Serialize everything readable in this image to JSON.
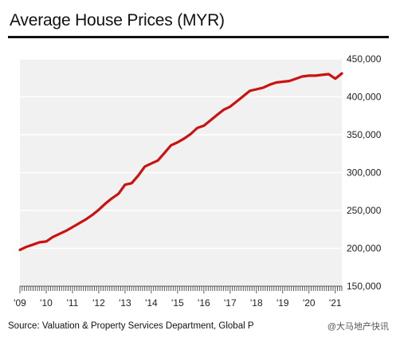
{
  "chart_data": {
    "type": "line",
    "title": "Average House Prices (MYR)",
    "xlabel": "",
    "ylabel": "",
    "x_tick_labels": [
      "'09",
      "'10",
      "'11",
      "'12",
      "'13",
      "'14",
      "'15",
      "'16",
      "'17",
      "'18",
      "'19",
      "'20",
      "'21"
    ],
    "y_tick_labels": [
      "150,000",
      "200,000",
      "250,000",
      "300,000",
      "350,000",
      "400,000",
      "450,000"
    ],
    "ylim": [
      150000,
      450000
    ],
    "xlim": [
      2009.0,
      2021.25
    ],
    "grid": "horizontal",
    "line_color": "#cc1111",
    "series": [
      {
        "x": [
          2009.0,
          2009.25,
          2009.5,
          2009.75,
          2010.0,
          2010.25,
          2010.5,
          2010.75,
          2011.0,
          2011.25,
          2011.5,
          2011.75,
          2012.0,
          2012.25,
          2012.5,
          2012.75,
          2013.0,
          2013.25,
          2013.5,
          2013.75,
          2014.0,
          2014.25,
          2014.5,
          2014.75,
          2015.0,
          2015.25,
          2015.5,
          2015.75,
          2016.0,
          2016.25,
          2016.5,
          2016.75,
          2017.0,
          2017.25,
          2017.5,
          2017.75,
          2018.0,
          2018.25,
          2018.5,
          2018.75,
          2019.0,
          2019.25,
          2019.5,
          2019.75,
          2020.0,
          2020.25,
          2020.5,
          2020.75,
          2021.0,
          2021.25
        ],
        "values": [
          198000,
          202000,
          205000,
          208000,
          209000,
          215000,
          219000,
          223000,
          228000,
          233000,
          238000,
          244000,
          251000,
          259000,
          266000,
          272000,
          284000,
          286000,
          296000,
          308000,
          312000,
          316000,
          326000,
          336000,
          340000,
          345000,
          351000,
          359000,
          362000,
          369000,
          376000,
          383000,
          387000,
          394000,
          401000,
          408000,
          410000,
          412000,
          416000,
          419000,
          420000,
          421000,
          424000,
          427000,
          428000,
          428000,
          429000,
          430000,
          424000,
          431000
        ]
      }
    ]
  },
  "source_text": "Source: Valuation & Property Services Department, Global P",
  "watermark_text": "@大马地产快讯"
}
